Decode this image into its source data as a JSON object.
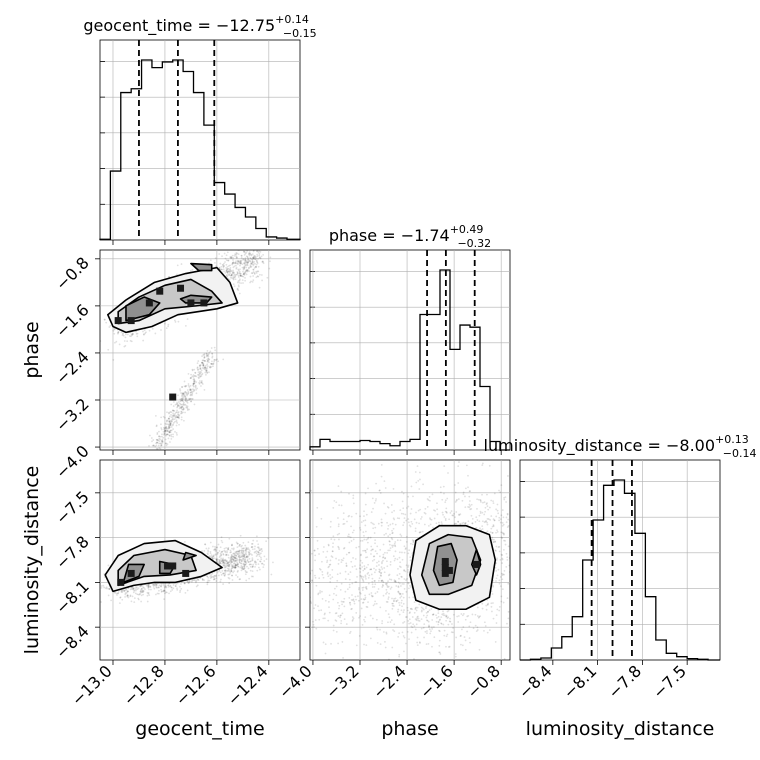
{
  "chart_data": {
    "type": "corner",
    "parameters": [
      {
        "name": "geocent_time",
        "title_main": "geocent_time = −12.75",
        "title_sup": "+0.14",
        "title_sub": "−0.15",
        "range": [
          -13.05,
          -12.28
        ],
        "ticks": [
          -13.0,
          -12.8,
          -12.6,
          -12.4
        ],
        "tick_labels": [
          "−13.0",
          "−12.8",
          "−12.6",
          "−12.4"
        ],
        "quantiles": [
          -12.9,
          -12.75,
          -12.61
        ],
        "hist_edges": [
          -13.05,
          -13.01,
          -12.97,
          -12.93,
          -12.89,
          -12.85,
          -12.81,
          -12.77,
          -12.73,
          -12.69,
          -12.65,
          -12.61,
          -12.57,
          -12.53,
          -12.49,
          -12.45,
          -12.41,
          -12.37,
          -12.33,
          -12.28
        ],
        "hist_counts": [
          2,
          180,
          385,
          395,
          470,
          450,
          465,
          470,
          440,
          385,
          300,
          150,
          120,
          85,
          60,
          30,
          8,
          5,
          2
        ]
      },
      {
        "name": "phase",
        "title_main": "phase = −1.74",
        "title_sup": "+0.49",
        "title_sub": "−0.32",
        "range": [
          -4.05,
          -0.65
        ],
        "ticks": [
          -4.0,
          -3.2,
          -2.4,
          -1.6,
          -0.8
        ],
        "tick_labels": [
          "−4.0",
          "−3.2",
          "−2.4",
          "−1.6",
          "−0.8"
        ],
        "quantiles": [
          -2.06,
          -1.74,
          -1.25
        ],
        "hist_edges": [
          -4.05,
          -3.88,
          -3.71,
          -3.54,
          -3.37,
          -3.2,
          -3.03,
          -2.86,
          -2.69,
          -2.52,
          -2.35,
          -2.18,
          -2.01,
          -1.84,
          -1.67,
          -1.5,
          -1.33,
          -1.16,
          -0.99,
          -0.82,
          -0.65
        ],
        "hist_counts": [
          3,
          10,
          8,
          8,
          8,
          9,
          8,
          6,
          4,
          8,
          10,
          128,
          128,
          170,
          95,
          118,
          116,
          60,
          8,
          0
        ]
      },
      {
        "name": "luminosity_distance",
        "title_main": "luminosity_distance = −8.00",
        "title_sup": "+0.13",
        "title_sub": "−0.14",
        "range": [
          -8.62,
          -7.28
        ],
        "ticks": [
          -8.4,
          -8.1,
          -7.8,
          -7.5
        ],
        "tick_labels": [
          "−8.4",
          "−8.1",
          "−7.8",
          "−7.5"
        ],
        "quantiles": [
          -8.14,
          -8.0,
          -7.87
        ],
        "hist_edges": [
          -8.62,
          -8.55,
          -8.48,
          -8.41,
          -8.34,
          -8.27,
          -8.2,
          -8.13,
          -8.06,
          -7.99,
          -7.92,
          -7.85,
          -7.78,
          -7.71,
          -7.64,
          -7.57,
          -7.5,
          -7.43,
          -7.36,
          -7.28
        ],
        "hist_counts": [
          0,
          1,
          3,
          18,
          35,
          65,
          150,
          210,
          262,
          270,
          250,
          190,
          95,
          30,
          10,
          5,
          2,
          1,
          0
        ]
      }
    ],
    "axis_labels": [
      "geocent_time",
      "phase",
      "luminosity_distance"
    ],
    "density_2d": [
      {
        "x": "geocent_time",
        "y": "phase",
        "cloud": [
          {
            "cx": [
              -12.98,
              -12.45
            ],
            "cy": [
              -2.0,
              -0.8
            ],
            "spread": 0.12,
            "n": 1400
          },
          {
            "cx": [
              -12.83,
              -12.62
            ],
            "cy": [
              -4.0,
              -2.4
            ],
            "spread": 0.06,
            "n": 500
          }
        ],
        "contours": [
          [
            [
              -13.0,
              -1.95
            ],
            [
              -12.95,
              -2.05
            ],
            [
              -12.85,
              -1.95
            ],
            [
              -12.75,
              -1.75
            ],
            [
              -12.6,
              -1.65
            ],
            [
              -12.52,
              -1.55
            ],
            [
              -12.55,
              -1.2
            ],
            [
              -12.6,
              -0.95
            ],
            [
              -12.72,
              -1.05
            ],
            [
              -12.84,
              -1.2
            ],
            [
              -12.95,
              -1.5
            ],
            [
              -13.02,
              -1.75
            ]
          ],
          [
            [
              -12.98,
              -1.9
            ],
            [
              -12.9,
              -1.85
            ],
            [
              -12.8,
              -1.65
            ],
            [
              -12.68,
              -1.6
            ],
            [
              -12.58,
              -1.55
            ],
            [
              -12.62,
              -1.35
            ],
            [
              -12.7,
              -1.15
            ],
            [
              -12.8,
              -1.25
            ],
            [
              -12.9,
              -1.45
            ],
            [
              -12.98,
              -1.7
            ]
          ],
          [
            [
              -12.95,
              -1.85
            ],
            [
              -12.86,
              -1.75
            ],
            [
              -12.82,
              -1.55
            ],
            [
              -12.88,
              -1.45
            ],
            [
              -12.95,
              -1.6
            ]
          ],
          [
            [
              -12.72,
              -1.55
            ],
            [
              -12.64,
              -1.55
            ],
            [
              -12.62,
              -1.45
            ],
            [
              -12.7,
              -1.42
            ],
            [
              -12.74,
              -1.48
            ]
          ],
          [
            [
              -12.67,
              -1.0
            ],
            [
              -12.62,
              -1.0
            ],
            [
              -12.62,
              -0.9
            ],
            [
              -12.7,
              -0.88
            ]
          ]
        ],
        "hot_cells": [
          [
            -12.98,
            -1.85
          ],
          [
            -12.93,
            -1.85
          ],
          [
            -12.86,
            -1.55
          ],
          [
            -12.82,
            -1.35
          ],
          [
            -12.74,
            -1.3
          ],
          [
            -12.7,
            -1.55
          ],
          [
            -12.65,
            -1.55
          ],
          [
            -12.77,
            -3.15
          ]
        ]
      },
      {
        "x": "geocent_time",
        "y": "luminosity_distance",
        "cloud": [
          {
            "cx": [
              -13.0,
              -12.45
            ],
            "cy": [
              -8.12,
              -7.92
            ],
            "spread": 0.12,
            "n": 1800
          }
        ],
        "contours": [
          [
            [
              -13.0,
              -8.16
            ],
            [
              -12.92,
              -8.12
            ],
            [
              -12.84,
              -8.1
            ],
            [
              -12.76,
              -8.1
            ],
            [
              -12.66,
              -8.06
            ],
            [
              -12.58,
              -8.0
            ],
            [
              -12.66,
              -7.9
            ],
            [
              -12.76,
              -7.82
            ],
            [
              -12.88,
              -7.84
            ],
            [
              -12.98,
              -7.92
            ],
            [
              -13.03,
              -8.05
            ]
          ],
          [
            [
              -12.98,
              -8.12
            ],
            [
              -12.88,
              -8.06
            ],
            [
              -12.78,
              -8.05
            ],
            [
              -12.68,
              -8.02
            ],
            [
              -12.7,
              -7.92
            ],
            [
              -12.8,
              -7.88
            ],
            [
              -12.92,
              -7.92
            ],
            [
              -12.98,
              -8.02
            ]
          ],
          [
            [
              -12.96,
              -8.1
            ],
            [
              -12.9,
              -8.06
            ],
            [
              -12.88,
              -7.98
            ],
            [
              -12.94,
              -7.98
            ]
          ],
          [
            [
              -12.82,
              -8.04
            ],
            [
              -12.78,
              -8.04
            ],
            [
              -12.76,
              -7.98
            ],
            [
              -12.82,
              -7.96
            ]
          ],
          [
            [
              -12.73,
              -7.95
            ],
            [
              -12.68,
              -7.92
            ],
            [
              -12.72,
              -7.9
            ]
          ]
        ],
        "hot_cells": [
          [
            -12.97,
            -8.1
          ],
          [
            -12.93,
            -8.04
          ],
          [
            -12.79,
            -7.99
          ],
          [
            -12.77,
            -7.99
          ],
          [
            -12.72,
            -8.04
          ]
        ]
      },
      {
        "x": "phase",
        "y": "luminosity_distance",
        "cloud": [
          {
            "cx": [
              -2.2,
              -1.0
            ],
            "cy": [
              -8.25,
              -7.75
            ],
            "spread": 0.45,
            "n": 1600
          },
          {
            "cx": [
              -4.0,
              -2.6
            ],
            "cy": [
              -8.25,
              -7.75
            ],
            "spread": 0.45,
            "n": 600
          }
        ],
        "contours": [
          [
            [
              -2.35,
              -8.05
            ],
            [
              -2.25,
              -8.22
            ],
            [
              -1.85,
              -8.28
            ],
            [
              -1.4,
              -8.28
            ],
            [
              -1.0,
              -8.2
            ],
            [
              -0.9,
              -7.95
            ],
            [
              -1.0,
              -7.78
            ],
            [
              -1.4,
              -7.72
            ],
            [
              -1.85,
              -7.72
            ],
            [
              -2.25,
              -7.82
            ]
          ],
          [
            [
              -2.15,
              -8.05
            ],
            [
              -2.02,
              -8.18
            ],
            [
              -1.7,
              -8.18
            ],
            [
              -1.3,
              -8.12
            ],
            [
              -1.15,
              -7.95
            ],
            [
              -1.3,
              -7.8
            ],
            [
              -1.7,
              -7.78
            ],
            [
              -2.02,
              -7.84
            ]
          ],
          [
            [
              -1.95,
              -8.02
            ],
            [
              -1.85,
              -8.12
            ],
            [
              -1.62,
              -8.1
            ],
            [
              -1.55,
              -7.95
            ],
            [
              -1.65,
              -7.84
            ],
            [
              -1.88,
              -7.86
            ]
          ],
          [
            [
              -1.3,
              -7.98
            ],
            [
              -1.22,
              -8.05
            ],
            [
              -1.15,
              -7.98
            ],
            [
              -1.22,
              -7.88
            ]
          ]
        ],
        "hot_cells": [
          [
            -1.75,
            -8.0
          ],
          [
            -1.75,
            -7.96
          ],
          [
            -1.75,
            -8.04
          ],
          [
            -1.68,
            -8.02
          ],
          [
            -1.22,
            -7.98
          ]
        ]
      }
    ]
  }
}
